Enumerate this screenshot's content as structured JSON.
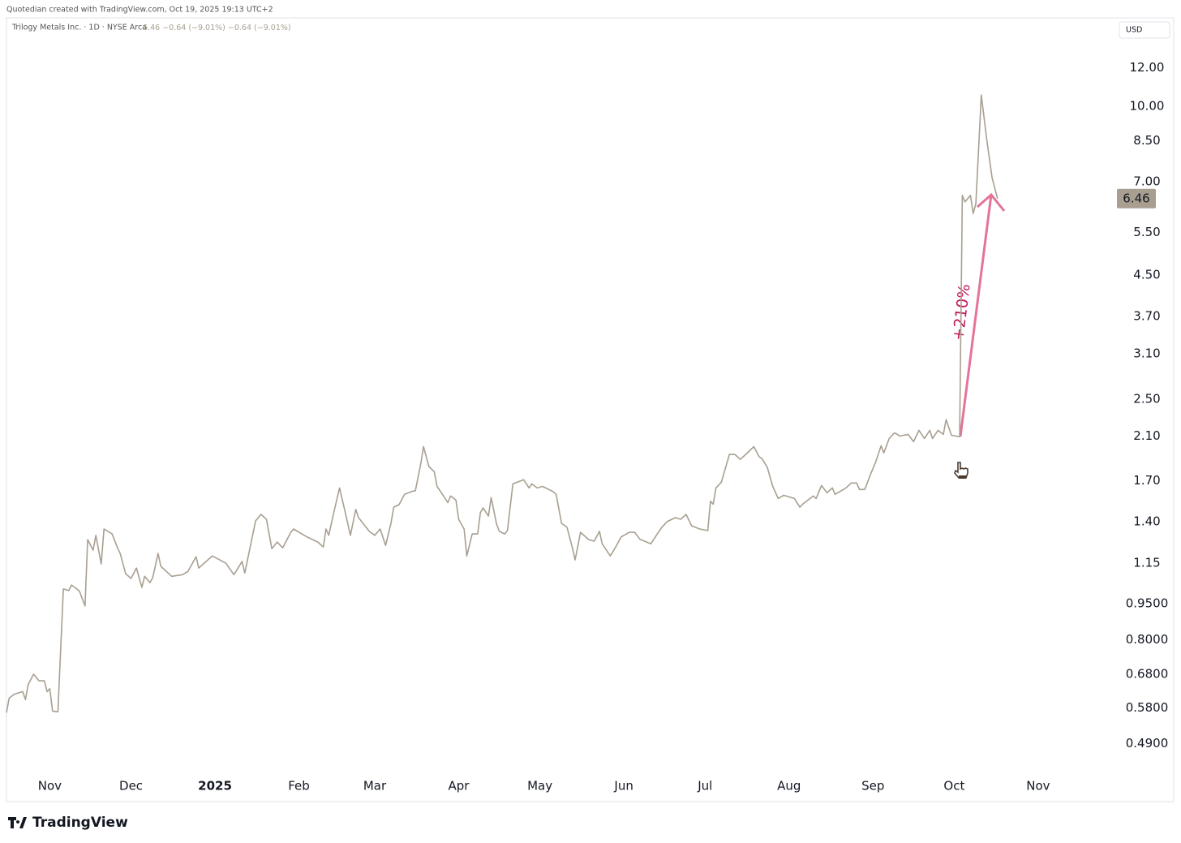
{
  "chart_data": {
    "type": "line",
    "header": "Quotedian created with TradingView.com, Oct 19, 2025 19:13 UTC+2",
    "legend_values": [
      "6.46",
      "−0.64 (−9.01%)",
      "−0.64 (−9.01%)"
    ],
    "currency": "USD",
    "brand": "TradingView",
    "annotation": "+210%",
    "last_price": {
      "value": 6.46,
      "label": "6.46"
    },
    "log_scale": true,
    "grid": false,
    "x": [
      -16,
      -15,
      -13,
      -10,
      -9,
      -8,
      -6,
      -4,
      -2,
      -1,
      0,
      1,
      3,
      5,
      7,
      8,
      10,
      11,
      13,
      14,
      16,
      17,
      19,
      20,
      23,
      25,
      26,
      28,
      30,
      32,
      34,
      35,
      37,
      38,
      40,
      41,
      45,
      49,
      51,
      54,
      55,
      60,
      65,
      68,
      71,
      72,
      76,
      78,
      80,
      82,
      84,
      86,
      89,
      90,
      95,
      99,
      101,
      102,
      103,
      105,
      107,
      109,
      111,
      113,
      114,
      118,
      120,
      122,
      124,
      126,
      127,
      129,
      131,
      134,
      135,
      137,
      138,
      140,
      142,
      143,
      145,
      147,
      148,
      150,
      151,
      153,
      154,
      156,
      158,
      159,
      160,
      162,
      163,
      165,
      166,
      168,
      169,
      171,
      175,
      177,
      178,
      180,
      182,
      186,
      187,
      189,
      191,
      193,
      194,
      196,
      199,
      201,
      203,
      204,
      207,
      209,
      211,
      214,
      216,
      218,
      222,
      224,
      226,
      228,
      231,
      233,
      235,
      237,
      240,
      243,
      244,
      245,
      246,
      248,
      250,
      251,
      253,
      255,
      257,
      260,
      262,
      263,
      265,
      267,
      269,
      271,
      275,
      277,
      278,
      282,
      283,
      285,
      287,
      289,
      290,
      294,
      296,
      298,
      299,
      301,
      303,
      305,
      307,
      308,
      310,
      312,
      314,
      317,
      319,
      321,
      323,
      325,
      326,
      328,
      330,
      331,
      333,
      336,
      337,
      338,
      340,
      341,
      342,
      344,
      346,
      348,
      350
    ],
    "series": [
      {
        "name": "Trilogy Metals Inc. · 1D · NYSE Arca",
        "color": "#a89f91",
        "values": [
          0.567,
          0.607,
          0.619,
          0.626,
          0.603,
          0.647,
          0.68,
          0.659,
          0.659,
          0.626,
          0.635,
          0.571,
          0.569,
          1.018,
          1.01,
          1.037,
          1.018,
          1.006,
          0.939,
          1.286,
          1.223,
          1.312,
          1.146,
          1.352,
          1.321,
          1.237,
          1.204,
          1.094,
          1.07,
          1.124,
          1.026,
          1.081,
          1.049,
          1.074,
          1.204,
          1.133,
          1.081,
          1.089,
          1.106,
          1.186,
          1.124,
          1.19,
          1.15,
          1.089,
          1.159,
          1.098,
          1.405,
          1.449,
          1.416,
          1.232,
          1.271,
          1.237,
          1.331,
          1.352,
          1.302,
          1.271,
          1.242,
          1.352,
          1.312,
          1.471,
          1.642,
          1.471,
          1.312,
          1.483,
          1.427,
          1.337,
          1.312,
          1.352,
          1.251,
          1.389,
          1.499,
          1.517,
          1.593,
          1.617,
          1.621,
          1.843,
          1.997,
          1.817,
          1.773,
          1.654,
          1.593,
          1.532,
          1.581,
          1.55,
          1.416,
          1.352,
          1.19,
          1.321,
          1.321,
          1.46,
          1.494,
          1.438,
          1.569,
          1.384,
          1.337,
          1.321,
          1.342,
          1.674,
          1.707,
          1.642,
          1.674,
          1.642,
          1.654,
          1.612,
          1.593,
          1.389,
          1.363,
          1.237,
          1.168,
          1.331,
          1.286,
          1.276,
          1.337,
          1.261,
          1.19,
          1.242,
          1.302,
          1.331,
          1.331,
          1.287,
          1.261,
          1.312,
          1.363,
          1.4,
          1.427,
          1.416,
          1.449,
          1.373,
          1.352,
          1.342,
          1.542,
          1.52,
          1.642,
          1.687,
          1.843,
          1.924,
          1.924,
          1.88,
          1.924,
          1.997,
          1.902,
          1.887,
          1.81,
          1.654,
          1.562,
          1.586,
          1.562,
          1.499,
          1.52,
          1.581,
          1.562,
          1.661,
          1.605,
          1.642,
          1.593,
          1.642,
          1.681,
          1.681,
          1.63,
          1.63,
          1.746,
          1.857,
          2.005,
          1.938,
          2.076,
          2.132,
          2.1,
          2.116,
          2.044,
          2.157,
          2.076,
          2.157,
          2.076,
          2.157,
          2.116,
          2.268,
          2.108,
          2.092,
          6.56,
          6.36,
          6.56,
          6.02,
          6.31,
          10.55,
          8.57,
          7.13,
          6.46
        ]
      }
    ],
    "xlim": [
      -16,
      392
    ],
    "xticks": [
      {
        "value": 0,
        "label": "Nov"
      },
      {
        "value": 30,
        "label": "Dec"
      },
      {
        "value": 61,
        "label": "2025"
      },
      {
        "value": 92,
        "label": "Feb"
      },
      {
        "value": 120,
        "label": "Mar"
      },
      {
        "value": 151,
        "label": "Apr"
      },
      {
        "value": 181,
        "label": "May"
      },
      {
        "value": 212,
        "label": "Jun"
      },
      {
        "value": 242,
        "label": "Jul"
      },
      {
        "value": 273,
        "label": "Aug"
      },
      {
        "value": 304,
        "label": "Sep"
      },
      {
        "value": 334,
        "label": "Oct"
      },
      {
        "value": 365,
        "label": "Nov"
      }
    ],
    "ylim": [
      0.372,
      15.2
    ],
    "yticks": [
      {
        "value": 12,
        "label": "12.00"
      },
      {
        "value": 10,
        "label": "10.00"
      },
      {
        "value": 8.5,
        "label": "8.50"
      },
      {
        "value": 7,
        "label": "7.00"
      },
      {
        "value": 5.5,
        "label": "5.50"
      },
      {
        "value": 4.5,
        "label": "4.50"
      },
      {
        "value": 3.7,
        "label": "3.70"
      },
      {
        "value": 3.1,
        "label": "3.10"
      },
      {
        "value": 2.5,
        "label": "2.50"
      },
      {
        "value": 2.1,
        "label": "2.10"
      },
      {
        "value": 1.7,
        "label": "1.70"
      },
      {
        "value": 1.4,
        "label": "1.40"
      },
      {
        "value": 1.15,
        "label": "1.15"
      },
      {
        "value": 0.95,
        "label": "0.9500"
      },
      {
        "value": 0.8,
        "label": "0.8000"
      },
      {
        "value": 0.68,
        "label": "0.6800"
      },
      {
        "value": 0.58,
        "label": "0.5800"
      },
      {
        "value": 0.49,
        "label": "0.4900"
      }
    ]
  }
}
